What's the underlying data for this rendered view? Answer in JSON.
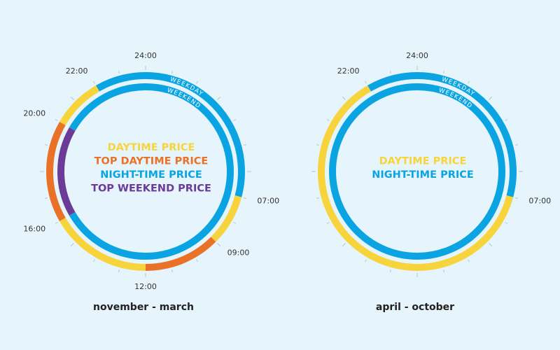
{
  "clocks": [
    {
      "caption": "november - march",
      "legend": [
        {
          "text": "DAYTIME PRICE",
          "color": "#f7d43b"
        },
        {
          "text": "TOP DAYTIME PRICE",
          "color": "#ea7128"
        },
        {
          "text": "NIGHT-TIME PRICE",
          "color": "#0ba4e2"
        },
        {
          "text": "TOP WEEKEND PRICE",
          "color": "#6b3b97"
        }
      ],
      "hour_labels": [
        {
          "hour": 24,
          "label": "24:00"
        },
        {
          "hour": 22,
          "label": "22:00"
        },
        {
          "hour": 20,
          "label": "20:00"
        },
        {
          "hour": 16,
          "label": "16:00"
        },
        {
          "hour": 12,
          "label": "12:00"
        },
        {
          "hour": 9,
          "label": "09:00"
        },
        {
          "hour": 7,
          "label": "07:00"
        }
      ],
      "rings": [
        {
          "name": "WEEKDAY",
          "segments": [
            {
              "start": 22,
              "end": 7,
              "color": "#0ba4e2"
            },
            {
              "start": 7,
              "end": 9,
              "color": "#f7d43b"
            },
            {
              "start": 9,
              "end": 12,
              "color": "#ea7128"
            },
            {
              "start": 12,
              "end": 16,
              "color": "#f7d43b"
            },
            {
              "start": 16,
              "end": 20,
              "color": "#ea7128"
            },
            {
              "start": 20,
              "end": 22,
              "color": "#f7d43b"
            }
          ]
        },
        {
          "name": "WEEKEND",
          "segments": [
            {
              "start": 20,
              "end": 16,
              "color": "#0ba4e2"
            },
            {
              "start": 16,
              "end": 20,
              "color": "#6b3b97"
            }
          ]
        }
      ]
    },
    {
      "caption": "april - october",
      "legend": [
        {
          "text": "DAYTIME PRICE",
          "color": "#f7d43b"
        },
        {
          "text": "NIGHT-TIME PRICE",
          "color": "#0ba4e2"
        }
      ],
      "hour_labels": [
        {
          "hour": 24,
          "label": "24:00"
        },
        {
          "hour": 22,
          "label": "22:00"
        },
        {
          "hour": 7,
          "label": "07:00"
        }
      ],
      "rings": [
        {
          "name": "WEEKDAY",
          "segments": [
            {
              "start": 22,
              "end": 7,
              "color": "#0ba4e2"
            },
            {
              "start": 7,
              "end": 22,
              "color": "#f7d43b"
            }
          ]
        },
        {
          "name": "WEEKEND",
          "segments": [
            {
              "start": 0,
              "end": 24,
              "color": "#0ba4e2"
            }
          ]
        }
      ]
    }
  ]
}
